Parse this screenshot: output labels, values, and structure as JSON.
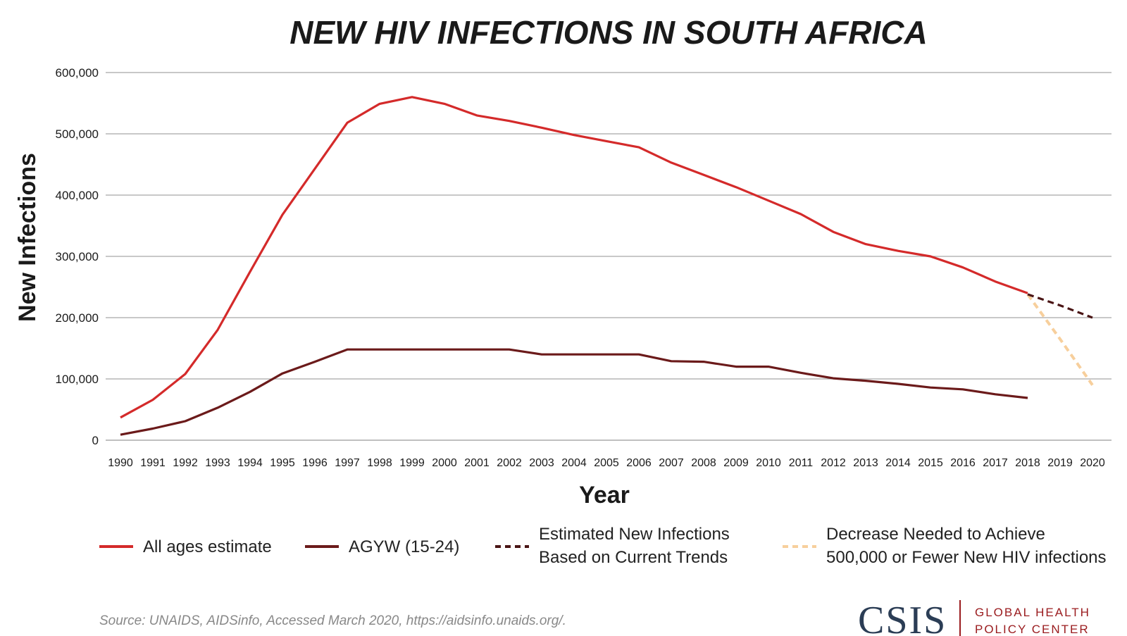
{
  "chart_data": {
    "type": "line",
    "title": "NEW HIV INFECTIONS IN SOUTH AFRICA",
    "xlabel": "Year",
    "ylabel": "New Infections",
    "ylim": [
      0,
      600000
    ],
    "yticks": [
      {
        "value": 0,
        "label": "0"
      },
      {
        "value": 100000,
        "label": "100,000"
      },
      {
        "value": 200000,
        "label": "200,000"
      },
      {
        "value": 300000,
        "label": "300,000"
      },
      {
        "value": 400000,
        "label": "400,000"
      },
      {
        "value": 500000,
        "label": "500,000"
      },
      {
        "value": 600000,
        "label": "600,000"
      }
    ],
    "categories": [
      "1990",
      "1991",
      "1992",
      "1993",
      "1994",
      "1995",
      "1996",
      "1997",
      "1998",
      "1999",
      "2000",
      "2001",
      "2002",
      "2003",
      "2004",
      "2005",
      "2006",
      "2007",
      "2008",
      "2009",
      "2010",
      "2011",
      "2012",
      "2013",
      "2014",
      "2015",
      "2016",
      "2017",
      "2018",
      "2019",
      "2020"
    ],
    "grid": true,
    "legend_position": "bottom",
    "series": [
      {
        "name": "All ages estimate",
        "color": "#d42a2a",
        "style": "solid",
        "x": [
          "1990",
          "1991",
          "1992",
          "1993",
          "1994",
          "1995",
          "1996",
          "1997",
          "1998",
          "1999",
          "2000",
          "2001",
          "2002",
          "2003",
          "2004",
          "2005",
          "2006",
          "2007",
          "2008",
          "2009",
          "2010",
          "2011",
          "2012",
          "2013",
          "2014",
          "2015",
          "2016",
          "2017",
          "2018"
        ],
        "values": [
          37000,
          66000,
          108000,
          180000,
          275000,
          368000,
          443000,
          518000,
          549000,
          560000,
          549000,
          530000,
          521000,
          510000,
          498000,
          488000,
          478000,
          453000,
          433000,
          413000,
          391000,
          369000,
          340000,
          320000,
          309000,
          300000,
          282000,
          259000,
          240000
        ]
      },
      {
        "name": "AGYW (15-24)",
        "color": "#6b1a1a",
        "style": "solid",
        "x": [
          "1990",
          "1991",
          "1992",
          "1993",
          "1994",
          "1995",
          "1996",
          "1997",
          "1998",
          "1999",
          "2000",
          "2001",
          "2002",
          "2003",
          "2004",
          "2005",
          "2006",
          "2007",
          "2008",
          "2009",
          "2010",
          "2011",
          "2012",
          "2013",
          "2014",
          "2015",
          "2016",
          "2017",
          "2018"
        ],
        "values": [
          9000,
          19000,
          31000,
          53000,
          79000,
          109000,
          128000,
          148000,
          148000,
          148000,
          148000,
          148000,
          148000,
          140000,
          140000,
          140000,
          140000,
          129000,
          128000,
          120000,
          120000,
          110000,
          101000,
          97000,
          92000,
          86000,
          83000,
          75000,
          69000
        ]
      },
      {
        "name": "Estimated New Infections Based on Current Trends",
        "name_lines": [
          "Estimated New Infections",
          "Based on Current Trends"
        ],
        "color": "#4a1515",
        "style": "dashed",
        "x": [
          "2018",
          "2019",
          "2020"
        ],
        "values": [
          238000,
          220000,
          200000
        ]
      },
      {
        "name": "Decrease Needed to Achieve 500,000 or Fewer New HIV infections",
        "name_lines": [
          "Decrease Needed to Achieve",
          "500,000 or Fewer New HIV infections"
        ],
        "color": "#f7cf9c",
        "style": "dashed",
        "x": [
          "2018",
          "2019",
          "2020"
        ],
        "values": [
          238000,
          165000,
          90000
        ]
      }
    ],
    "source": "Source: UNAIDS, AIDSinfo, Accessed March 2020, https://aidsinfo.unaids.org/."
  },
  "branding": {
    "logo": "CSIS",
    "center_line1": "GLOBAL HEALTH",
    "center_line2": "POLICY CENTER",
    "logo_color": "#2b3d55",
    "center_color": "#9a1b1e"
  }
}
